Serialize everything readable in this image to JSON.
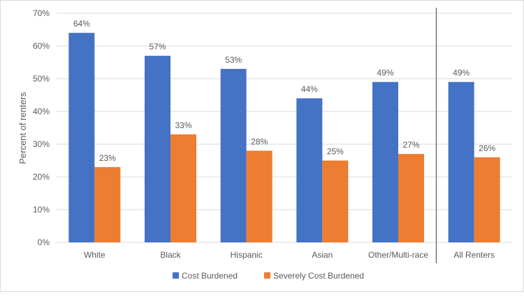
{
  "chart_data": {
    "type": "bar",
    "title": "",
    "xlabel": "",
    "ylabel": "Percent of renters",
    "ylim": [
      0,
      70
    ],
    "yticks": [
      "0%",
      "10%",
      "20%",
      "30%",
      "40%",
      "50%",
      "60%",
      "70%"
    ],
    "grid": true,
    "legend_position": "bottom",
    "categories": [
      "White",
      "Black",
      "Hispanic",
      "Asian",
      "Other/Multi-race",
      "All Renters"
    ],
    "series": [
      {
        "name": "Cost Burdened",
        "color": "#4472C4",
        "values": [
          64,
          57,
          53,
          44,
          49,
          49
        ],
        "labels": [
          "64%",
          "57%",
          "53%",
          "44%",
          "49%",
          "49%"
        ]
      },
      {
        "name": "Severely Cost Burdened",
        "color": "#ED7D31",
        "values": [
          23,
          33,
          28,
          25,
          27,
          26
        ],
        "labels": [
          "23%",
          "33%",
          "28%",
          "25%",
          "27%",
          "26%"
        ]
      }
    ],
    "separator_before_category": "All Renters"
  }
}
